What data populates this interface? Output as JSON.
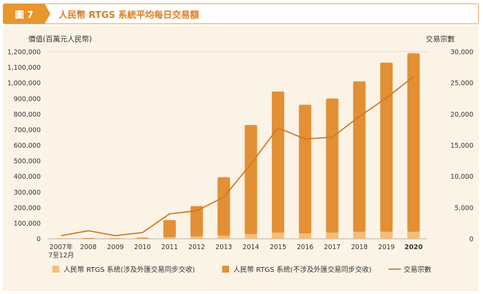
{
  "header": {
    "badge": "圖 7",
    "title": "人民幣 RTGS 系統平均每日交易額"
  },
  "chart_data": {
    "type": "bar",
    "categories": [
      "2007年\n7至12月",
      "2008",
      "2009",
      "2010",
      "2011",
      "2012",
      "2013",
      "2014",
      "2015",
      "2016",
      "2017",
      "2018",
      "2019",
      "2020"
    ],
    "ylabel": "價值(百萬元人民幣)",
    "y2label": "交易宗數",
    "ylim": [
      0,
      1200000
    ],
    "y2lim": [
      0,
      30000
    ],
    "yticks": [
      "0",
      "100,000",
      "200,000",
      "300,000",
      "400,000",
      "500,000",
      "600,000",
      "700,000",
      "800,000",
      "900,000",
      "1,000,000",
      "1,100,000",
      "1,200,000"
    ],
    "y2ticks": [
      "0",
      "5,000",
      "10,000",
      "15,000",
      "20,000",
      "25,000",
      "30,000"
    ],
    "stacked": true,
    "series": [
      {
        "name": "人民幣 RTGS 系統(涉及外匯交易同步交收)",
        "kind": "bar",
        "color": "#f2be7a",
        "values": [
          400,
          1000,
          1000,
          2000,
          10000,
          15000,
          20000,
          30000,
          40000,
          35000,
          40000,
          45000,
          45000,
          45000
        ]
      },
      {
        "name": "人民幣 RTGS 系統(不涉及外匯交易同步交收)",
        "kind": "bar",
        "color": "#e38f34",
        "values": [
          1600,
          4000,
          3000,
          6000,
          110000,
          195000,
          375000,
          700000,
          905000,
          825000,
          860000,
          965000,
          1085000,
          1145000
        ]
      },
      {
        "name": "交易宗數",
        "kind": "line",
        "axis": "right",
        "color": "#d0782a",
        "values": [
          500,
          1300,
          500,
          1000,
          4000,
          4500,
          6700,
          12000,
          17800,
          16000,
          16300,
          19600,
          22600,
          26000
        ]
      }
    ]
  }
}
